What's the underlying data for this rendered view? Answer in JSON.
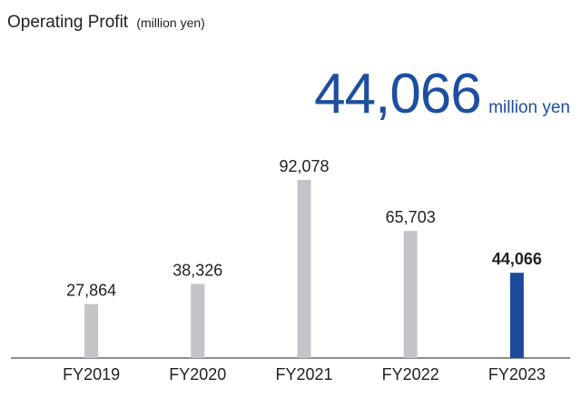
{
  "title": "Operating Profit",
  "title_unit": "(million yen)",
  "headline": {
    "value": "44,066",
    "unit": "million yen"
  },
  "colors": {
    "bar": "#c4c4c8",
    "highlight": "#1a4b9a",
    "axis": "#4a4a4a",
    "headline": "#1d4fa0"
  },
  "chart_data": {
    "type": "bar",
    "categories": [
      "FY2019",
      "FY2020",
      "FY2021",
      "FY2022",
      "FY2023"
    ],
    "values": [
      27864,
      38326,
      92078,
      65703,
      44066
    ],
    "value_labels": [
      "27,864",
      "38,326",
      "92,078",
      "65,703",
      "44,066"
    ],
    "highlight_index": 4,
    "title": "Operating Profit",
    "xlabel": "",
    "ylabel": "",
    "ylim": [
      0,
      100000
    ],
    "grid": false,
    "legend": "none"
  }
}
